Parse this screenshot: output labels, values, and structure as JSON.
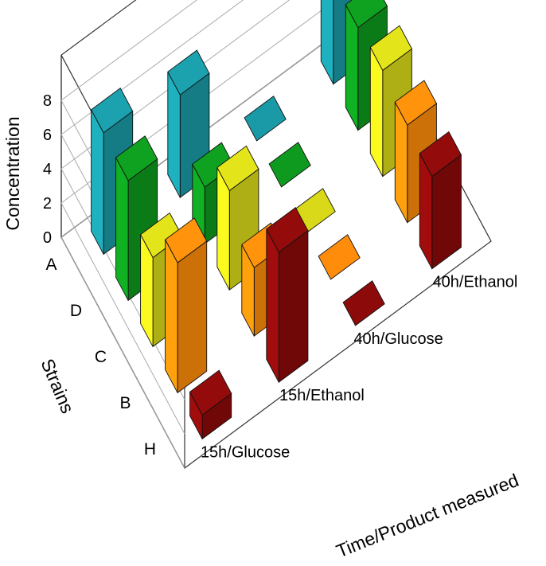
{
  "chart_data": {
    "type": "bar3d",
    "zlabel": "Concentration",
    "ylabel": "Strains",
    "xlabel": "Time/Product measured",
    "zlim": [
      0,
      8
    ],
    "zticks": [
      "0",
      "2",
      "4",
      "6",
      "8"
    ],
    "strains": [
      "A",
      "D",
      "C",
      "B",
      "H"
    ],
    "categories": [
      "15h/Glucose",
      "15h/Ethanol",
      "40h/Glucose",
      "40h/Ethanol"
    ],
    "series": [
      {
        "strain": "A",
        "color": "#1a9aa6",
        "values": [
          7.1,
          6.0,
          0.0,
          7.9
        ]
      },
      {
        "strain": "D",
        "color": "#0e9a1e",
        "values": [
          7.0,
          3.3,
          0.0,
          6.0
        ]
      },
      {
        "strain": "C",
        "color": "#d9d91a",
        "values": [
          5.2,
          5.8,
          0.0,
          6.2
        ]
      },
      {
        "strain": "B",
        "color": "#ff8c0a",
        "values": [
          7.6,
          4.0,
          0.0,
          5.7
        ]
      },
      {
        "strain": "H",
        "color": "#8c0a0a",
        "values": [
          1.4,
          7.6,
          0.0,
          5.4
        ]
      }
    ],
    "grid": true
  }
}
